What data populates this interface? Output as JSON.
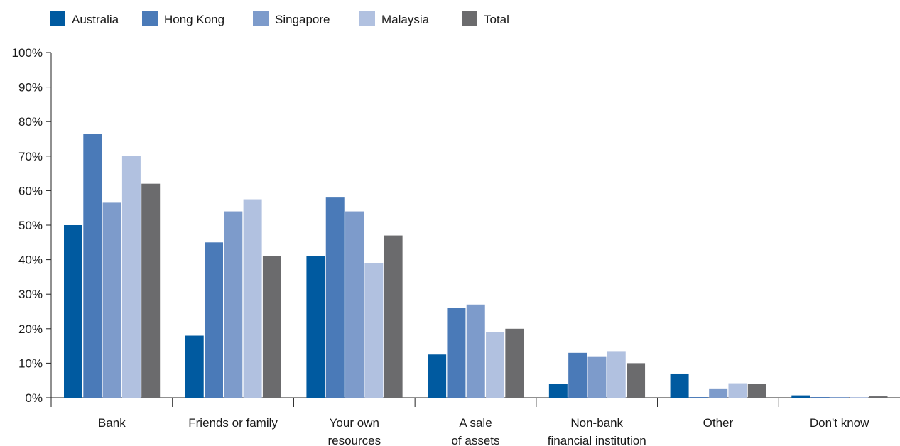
{
  "chart_data": {
    "type": "bar",
    "categories": [
      [
        "Bank"
      ],
      [
        "Friends or family"
      ],
      [
        "Your own",
        "resources"
      ],
      [
        "A sale",
        "of assets"
      ],
      [
        "Non-bank",
        "financial institution"
      ],
      [
        "Other"
      ],
      [
        "Don't know"
      ]
    ],
    "series": [
      {
        "name": "Australia",
        "color": "#005aa0",
        "values": [
          50,
          18,
          41,
          12.5,
          4,
          7,
          0.7
        ]
      },
      {
        "name": "Hong Kong",
        "color": "#4a7ab8",
        "values": [
          76.5,
          45,
          58,
          26,
          13,
          0.2,
          0.2
        ]
      },
      {
        "name": "Singapore",
        "color": "#7d9bcb",
        "values": [
          56.5,
          54,
          54,
          27,
          12,
          2.5,
          0.2
        ]
      },
      {
        "name": "Malaysia",
        "color": "#b1c1e0",
        "values": [
          70,
          57.5,
          39,
          19,
          13.5,
          4.2,
          0.2
        ]
      },
      {
        "name": "Total",
        "color": "#6b6b6d",
        "values": [
          62,
          41,
          47,
          20,
          10,
          4,
          0.4
        ]
      }
    ],
    "y_ticks": [
      "0%",
      "10%",
      "20%",
      "30%",
      "40%",
      "50%",
      "60%",
      "70%",
      "80%",
      "90%",
      "100%"
    ],
    "ylim": [
      0,
      100
    ],
    "grid": false,
    "legend_position": "top-left"
  }
}
